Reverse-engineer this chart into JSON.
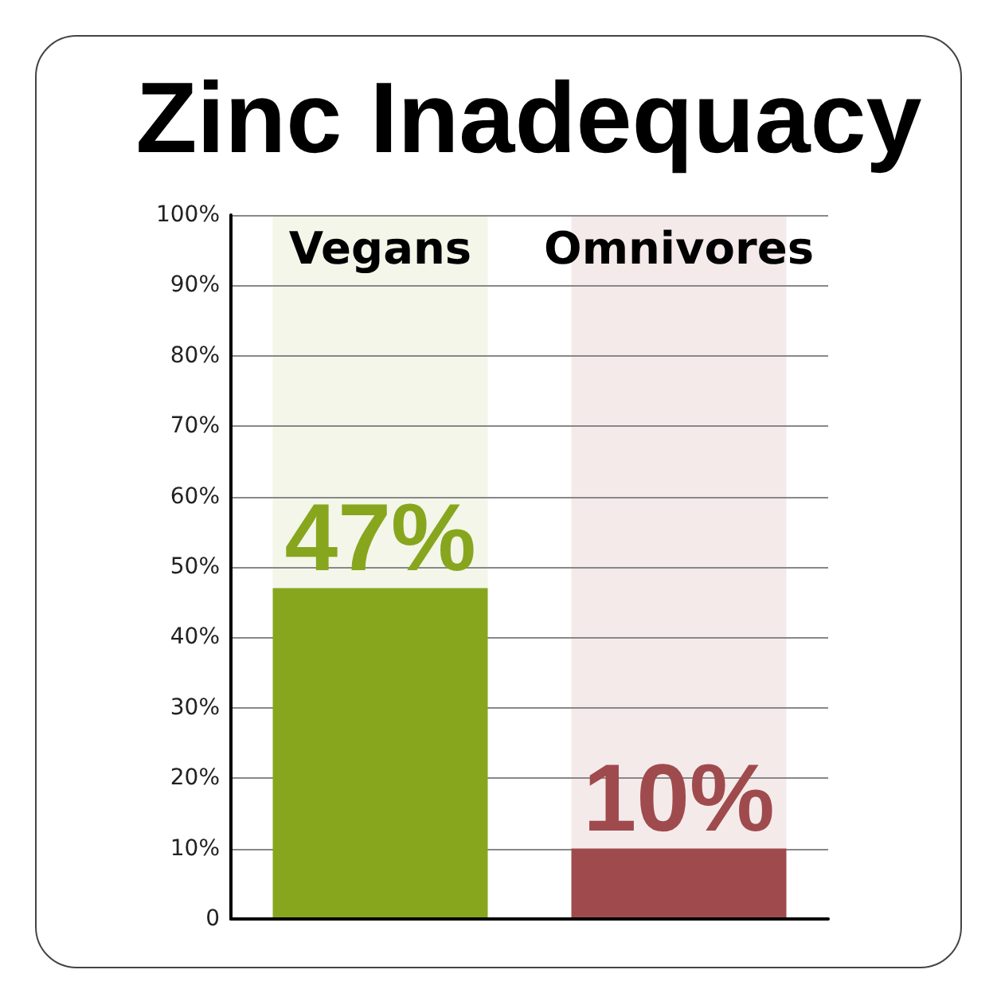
{
  "chart_data": {
    "type": "bar",
    "title": "Zinc Inadequacy",
    "categories": [
      "Vegans",
      "Omnivores"
    ],
    "stacked": true,
    "series": [
      {
        "values": [
          47,
          10
        ],
        "colors": [
          "#87a61e",
          "#9f4b4e"
        ],
        "value_labels": [
          "47%",
          "10%"
        ]
      },
      {
        "values": [
          53,
          90
        ],
        "colors": [
          "#f3f6e9",
          "#f5eaea"
        ]
      }
    ],
    "ylim": [
      0,
      100
    ],
    "yticks": [
      0,
      {
        "value": 10,
        "label": "10%"
      },
      {
        "value": 20,
        "label": "20%"
      },
      {
        "value": 30,
        "label": "30%"
      },
      {
        "value": 40,
        "label": "40%"
      },
      {
        "value": 50,
        "label": "50%"
      },
      {
        "value": 60,
        "label": "60%"
      },
      {
        "value": 70,
        "label": "70%"
      },
      {
        "value": 80,
        "label": "80%"
      },
      {
        "value": 90,
        "label": "90%"
      },
      {
        "value": 100,
        "label": "100%"
      }
    ],
    "grid": "y"
  }
}
